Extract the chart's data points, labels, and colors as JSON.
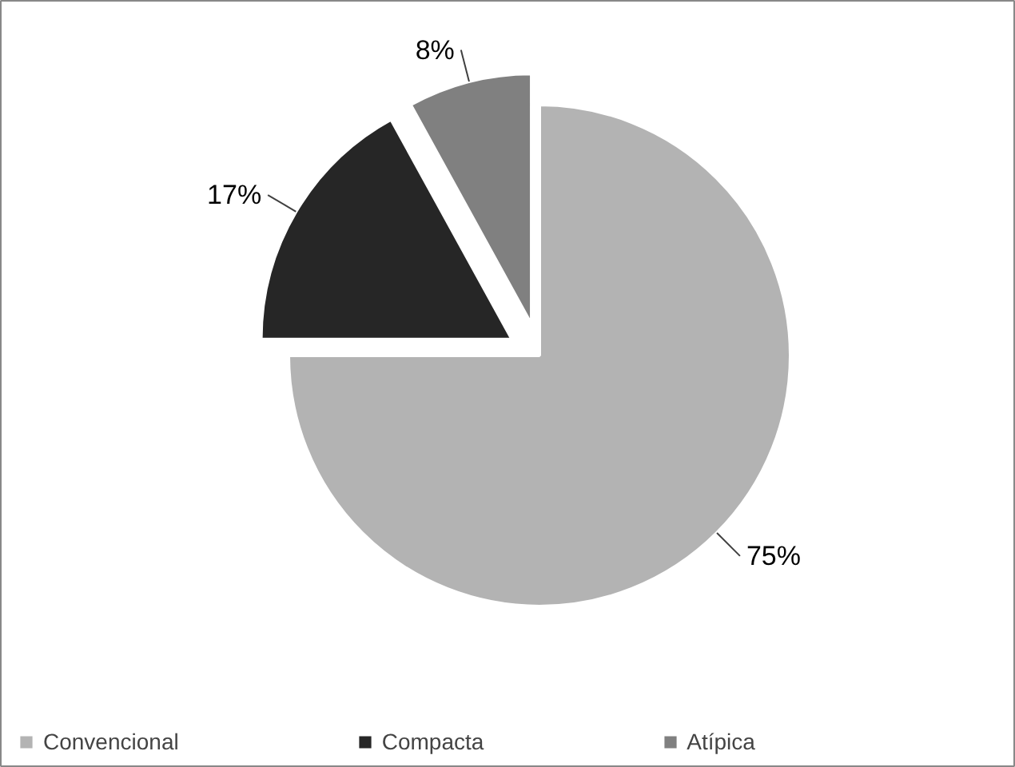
{
  "chart_data": {
    "type": "pie",
    "categories": [
      "Convencional",
      "Compacta",
      "Atípica"
    ],
    "values": [
      75,
      17,
      8
    ],
    "colors": [
      "#b3b3b3",
      "#262626",
      "#808080"
    ],
    "value_labels": [
      "75%",
      "17%",
      "8%"
    ],
    "legend": "bottom"
  }
}
